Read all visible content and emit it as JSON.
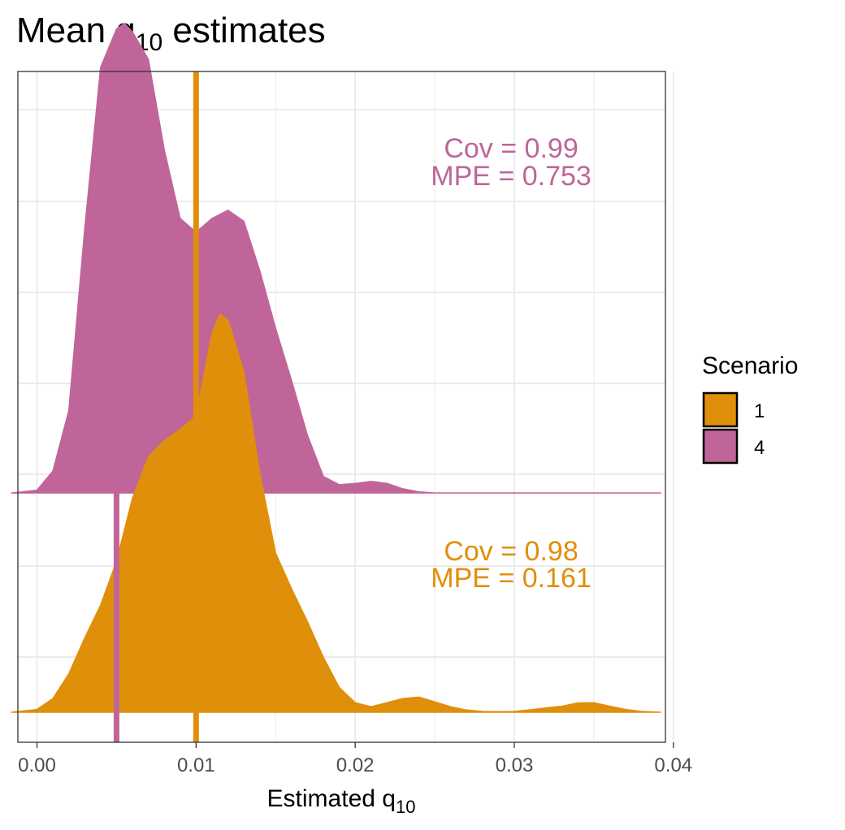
{
  "chart_data": {
    "type": "area",
    "subtype": "ridgeline-density",
    "title": "Mean q",
    "title_subscript": "10",
    "title_suffix": " estimates",
    "xlabel": "Estimated q",
    "xlabel_subscript": "10",
    "ylabel": "",
    "xlim": [
      -0.0012,
      0.0395
    ],
    "xticks": [
      0.0,
      0.01,
      0.02,
      0.03,
      0.04
    ],
    "xtick_labels": [
      "0.00",
      "0.01",
      "0.02",
      "0.03",
      "0.04"
    ],
    "grid": true,
    "legend": {
      "title": "Scenario",
      "position": "right"
    },
    "series": [
      {
        "name": "1",
        "color": "#E08F0B",
        "true_value": 0.01,
        "annotation": {
          "line1": "Cov = 0.98",
          "line2": "MPE = 0.161",
          "x": 0.0298
        },
        "density": {
          "x": [
            -0.0016,
            0.0,
            0.001,
            0.002,
            0.003,
            0.004,
            0.005,
            0.006,
            0.007,
            0.008,
            0.009,
            0.01,
            0.011,
            0.0115,
            0.012,
            0.013,
            0.014,
            0.015,
            0.016,
            0.017,
            0.018,
            0.019,
            0.02,
            0.021,
            0.022,
            0.023,
            0.024,
            0.025,
            0.026,
            0.027,
            0.028,
            0.029,
            0.03,
            0.031,
            0.032,
            0.033,
            0.034,
            0.035,
            0.036,
            0.037,
            0.038,
            0.0392
          ],
          "y": [
            0.0,
            0.01,
            0.05,
            0.14,
            0.27,
            0.39,
            0.55,
            0.78,
            0.93,
            0.99,
            1.03,
            1.08,
            1.38,
            1.45,
            1.43,
            1.24,
            0.87,
            0.58,
            0.45,
            0.33,
            0.2,
            0.09,
            0.035,
            0.02,
            0.035,
            0.05,
            0.055,
            0.038,
            0.02,
            0.008,
            0.003,
            0.002,
            0.003,
            0.009,
            0.016,
            0.022,
            0.034,
            0.035,
            0.022,
            0.01,
            0.003,
            0.0
          ]
        }
      },
      {
        "name": "4",
        "color": "#C06599",
        "true_value": 0.005,
        "annotation": {
          "line1": "Cov = 0.99",
          "line2": "MPE = 0.753",
          "x": 0.0298
        },
        "density": {
          "x": [
            -0.0016,
            0.0,
            0.001,
            0.002,
            0.003,
            0.004,
            0.005,
            0.0055,
            0.006,
            0.007,
            0.008,
            0.009,
            0.01,
            0.011,
            0.012,
            0.013,
            0.014,
            0.015,
            0.016,
            0.017,
            0.018,
            0.019,
            0.02,
            0.021,
            0.022,
            0.023,
            0.024,
            0.025,
            0.03,
            0.035,
            0.0392
          ],
          "y": [
            0.0,
            0.01,
            0.08,
            0.3,
            0.96,
            1.55,
            1.69,
            1.71,
            1.68,
            1.58,
            1.25,
            1.0,
            0.95,
            1.0,
            1.03,
            0.99,
            0.81,
            0.6,
            0.41,
            0.21,
            0.06,
            0.03,
            0.035,
            0.042,
            0.035,
            0.015,
            0.004,
            0.0,
            0.0,
            0.0,
            0.0
          ]
        }
      }
    ]
  }
}
